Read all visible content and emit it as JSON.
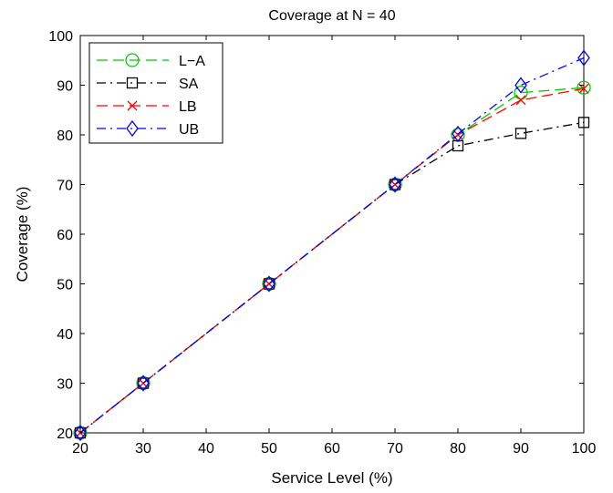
{
  "chart_data": {
    "type": "line",
    "title": "Coverage at N = 40",
    "xlabel": "Service Level (%)",
    "ylabel": "Coverage (%)",
    "xlim": [
      20,
      100
    ],
    "ylim": [
      20,
      100
    ],
    "xticks": [
      20,
      30,
      40,
      50,
      60,
      70,
      80,
      90,
      100
    ],
    "yticks": [
      20,
      30,
      40,
      50,
      60,
      70,
      80,
      90,
      100
    ],
    "grid": false,
    "legend_position": "top-left",
    "x": [
      20,
      30,
      50,
      70,
      80,
      90,
      100
    ],
    "series": [
      {
        "name": "L−A",
        "color": "#00cc00",
        "line_style": "dashed",
        "marker": "circle",
        "values": [
          20,
          30,
          50,
          70,
          80,
          88.5,
          89.5
        ]
      },
      {
        "name": "SA",
        "color": "#000000",
        "line_style": "dash-dot",
        "marker": "square",
        "values": [
          20,
          30,
          50,
          70,
          77.8,
          80.3,
          82.5
        ]
      },
      {
        "name": "LB",
        "color": "#ff0000",
        "line_style": "dashed",
        "marker": "x",
        "values": [
          20,
          30,
          50,
          70,
          80,
          87,
          89.3
        ]
      },
      {
        "name": "UB",
        "color": "#0000ff",
        "line_style": "dash-dot",
        "marker": "diamond",
        "values": [
          20,
          30,
          50,
          70,
          80.2,
          90,
          95.5
        ]
      }
    ]
  }
}
